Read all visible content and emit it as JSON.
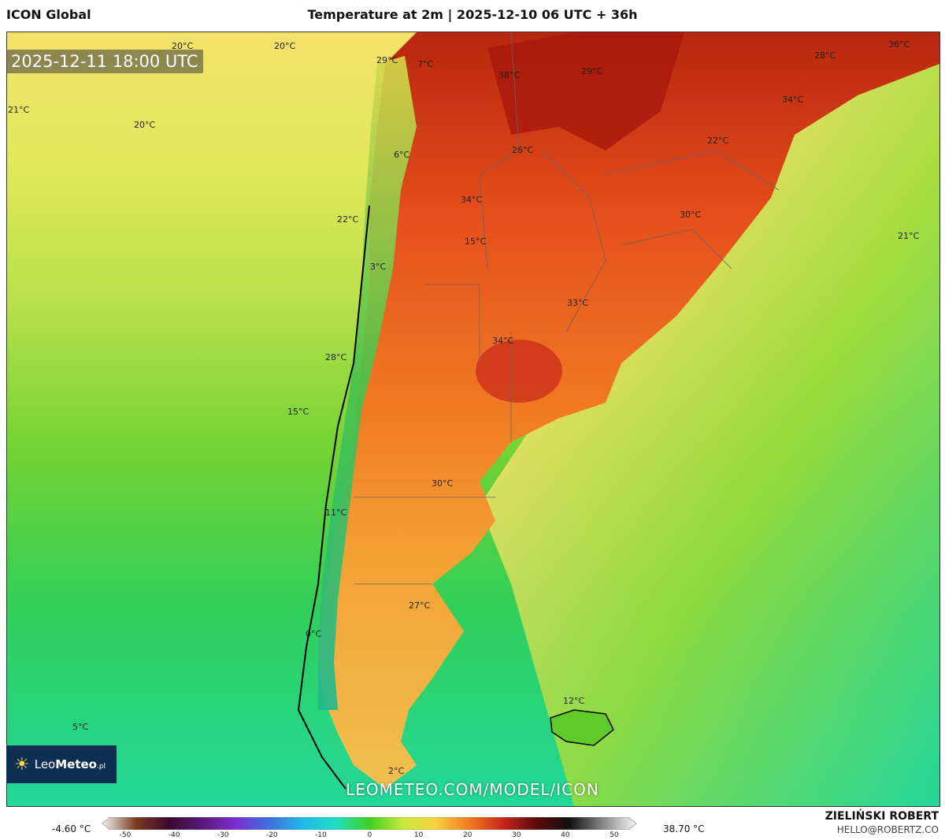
{
  "header": {
    "model": "ICON Global",
    "title": "Temperature at 2m | 2025-12-10 06 UTC + 36h"
  },
  "map": {
    "valid_time": "2025-12-11 18:00 UTC",
    "site_url": "LEOMETEO.COM/MODEL/ICON",
    "logo": {
      "text_light": "Leo",
      "text_bold": "Meteo",
      "suffix": ".pl",
      "icon": "sun-icon"
    },
    "labels": [
      {
        "text": "20°C"
      },
      {
        "text": "20°C"
      },
      {
        "text": "21°C"
      },
      {
        "text": "20°C"
      },
      {
        "text": "29°C"
      },
      {
        "text": "7°C"
      },
      {
        "text": "38°C"
      },
      {
        "text": "29°C"
      },
      {
        "text": "28°C"
      },
      {
        "text": "36°C"
      },
      {
        "text": "34°C"
      },
      {
        "text": "6°C"
      },
      {
        "text": "26°C"
      },
      {
        "text": "22°C"
      },
      {
        "text": "34°C"
      },
      {
        "text": "22°C"
      },
      {
        "text": "30°C"
      },
      {
        "text": "15°C"
      },
      {
        "text": "21°C"
      },
      {
        "text": "3°C"
      },
      {
        "text": "33°C"
      },
      {
        "text": "34°C"
      },
      {
        "text": "28°C"
      },
      {
        "text": "15°C"
      },
      {
        "text": "30°C"
      },
      {
        "text": "11°C"
      },
      {
        "text": "27°C"
      },
      {
        "text": "0°C"
      },
      {
        "text": "12°C"
      },
      {
        "text": "5°C"
      },
      {
        "text": "2°C"
      }
    ]
  },
  "colorbar": {
    "min_label": "-4.60 °C",
    "max_label": "38.70 °C",
    "ticks": [
      "-50",
      "-40",
      "-30",
      "-20",
      "-10",
      "0",
      "10",
      "20",
      "30",
      "40",
      "50"
    ],
    "colors": [
      "#f2f2f2",
      "#7a3b1e",
      "#3a0a2e",
      "#5a1a7a",
      "#7b2fd0",
      "#3d6fe0",
      "#22b8e8",
      "#1fe0c0",
      "#3fd020",
      "#c8e83a",
      "#f8d040",
      "#f07a20",
      "#c8261a",
      "#5a0a0a",
      "#111111",
      "#888888",
      "#f8f8f8"
    ]
  },
  "footer": {
    "author": "ZIELIŃSKI ROBERT",
    "email": "HELLO@ROBERTZ.CO"
  }
}
